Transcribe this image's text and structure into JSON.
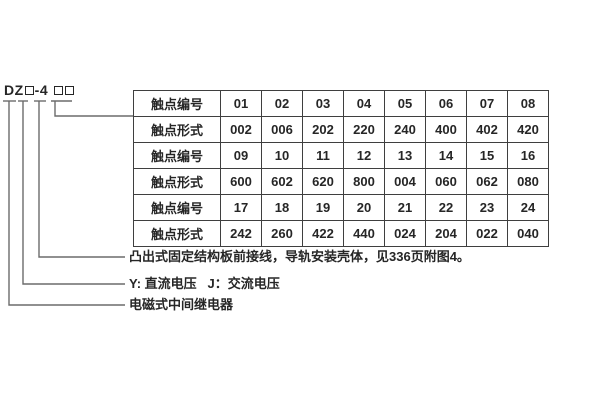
{
  "model_code": {
    "prefix": "DZ",
    "series": "-4",
    "full_designation": "DZ□-4□□"
  },
  "table": {
    "rows": [
      {
        "label": "触点编号",
        "values": [
          "01",
          "02",
          "03",
          "04",
          "05",
          "06",
          "07",
          "08"
        ]
      },
      {
        "label": "触点形式",
        "values": [
          "002",
          "006",
          "202",
          "220",
          "240",
          "400",
          "402",
          "420"
        ]
      },
      {
        "label": "触点编号",
        "values": [
          "09",
          "10",
          "11",
          "12",
          "13",
          "14",
          "15",
          "16"
        ]
      },
      {
        "label": "触点形式",
        "values": [
          "600",
          "602",
          "620",
          "800",
          "004",
          "060",
          "062",
          "080"
        ]
      },
      {
        "label": "触点编号",
        "values": [
          "17",
          "18",
          "19",
          "20",
          "21",
          "22",
          "23",
          "24"
        ]
      },
      {
        "label": "触点形式",
        "values": [
          "242",
          "260",
          "422",
          "440",
          "024",
          "204",
          "022",
          "040"
        ]
      }
    ]
  },
  "annotations": {
    "structure": "凸出式固定结构板前接线，导轨安装壳体，见336页附图4。",
    "voltage": "Y: 直流电压   J：交流电压",
    "device": "电磁式中间继电器"
  },
  "colors": {
    "background": "#ffffff",
    "text": "#262626",
    "table_border": "#3f3f3f",
    "leader_line": "#6b6b6b"
  }
}
